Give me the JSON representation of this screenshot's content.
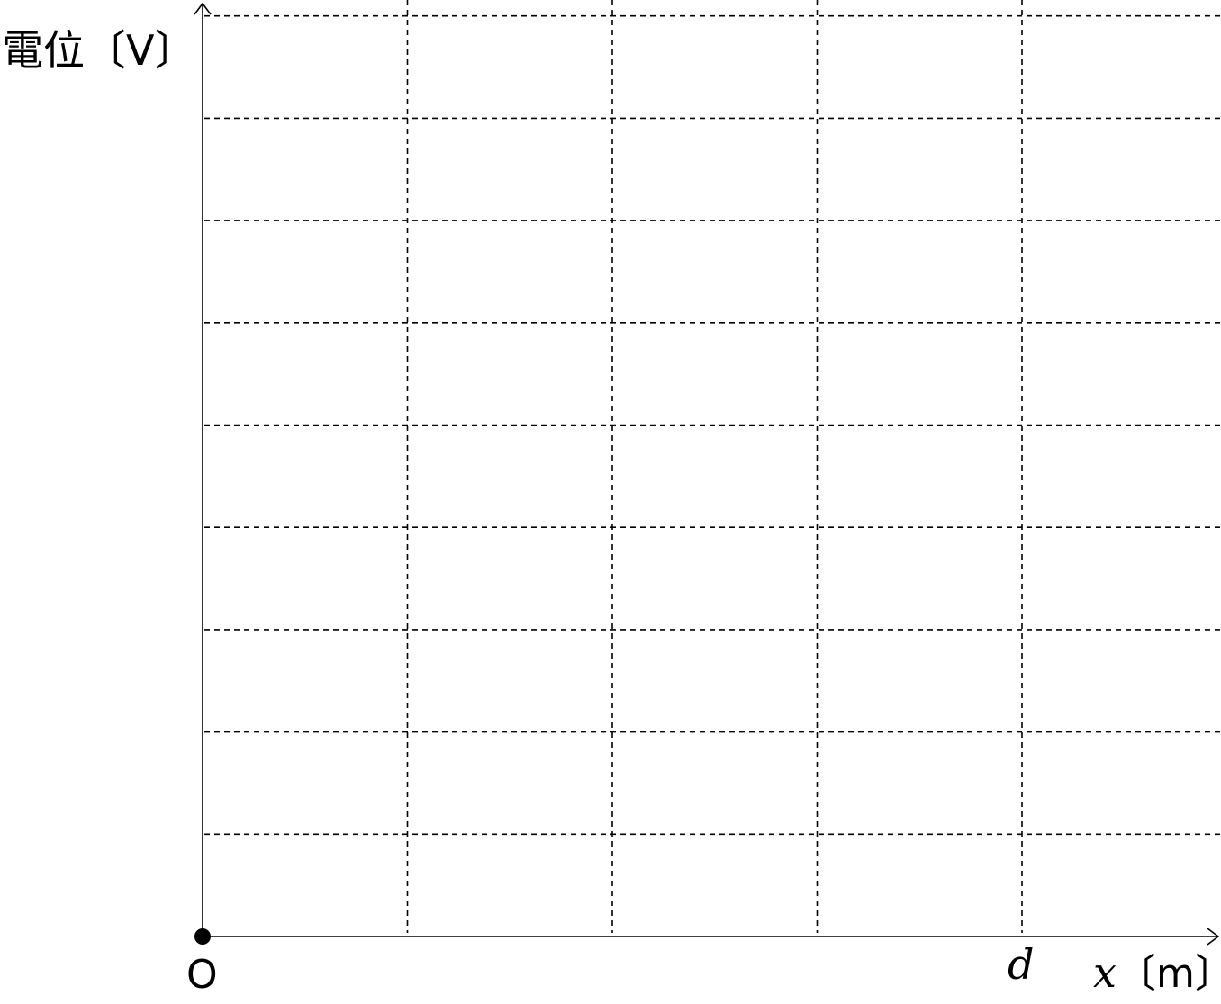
{
  "chart_data": {
    "type": "line",
    "title": "",
    "ylabel": "電位〔V〕",
    "xlabel_var": "x",
    "xlabel_unit": "〔m〕",
    "origin_label": "O",
    "x_tick_labels": [
      {
        "position": 4,
        "label": "d"
      }
    ],
    "x_grid_divisions": 5,
    "y_grid_divisions": 9,
    "x_range": [
      0,
      5
    ],
    "y_range": [
      0,
      9
    ],
    "grid": true,
    "series": []
  }
}
